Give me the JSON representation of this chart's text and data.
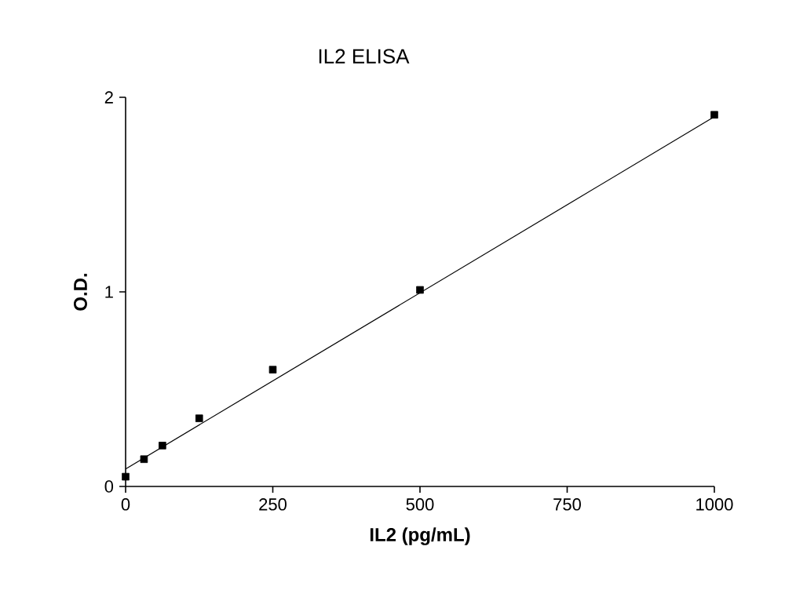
{
  "chart_data": {
    "type": "scatter",
    "title": "IL2 ELISA",
    "xlabel": "IL2 (pg/mL)",
    "ylabel": "O.D.",
    "xlim": [
      0,
      1000
    ],
    "xticks": [
      0,
      250,
      500,
      750,
      1000
    ],
    "ylim": [
      0,
      2
    ],
    "yticks": [
      0,
      1,
      2
    ],
    "grid": false,
    "series": [
      {
        "marker": "square",
        "color": "#000000",
        "x": [
          0,
          31.25,
          62.5,
          125,
          250,
          500,
          1000
        ],
        "values": [
          0.05,
          0.14,
          0.21,
          0.35,
          0.6,
          1.01,
          1.91
        ]
      },
      {
        "type": "line",
        "color": "#000000",
        "x": [
          0,
          1000
        ],
        "values": [
          0.09,
          1.9
        ]
      }
    ]
  }
}
